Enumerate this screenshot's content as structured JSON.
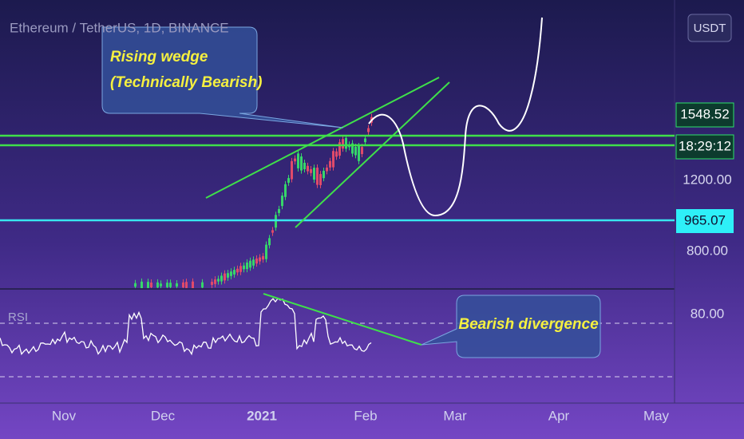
{
  "header": {
    "title": "Ethereum / TetherUS, 1D, BINANCE",
    "currency_button": "USDT"
  },
  "annotations": {
    "wedge_line1": "Rising wedge",
    "wedge_line2": "(Technically Bearish)",
    "divergence": "Bearish divergence"
  },
  "price_scale": {
    "last_price": "1548.52",
    "countdown": "18:29:12",
    "level1": "1200.00",
    "support": "965.07",
    "level2": "800.00"
  },
  "rsi": {
    "label": "RSI",
    "level": "80.00"
  },
  "time_axis": [
    "Nov",
    "Dec",
    "2021",
    "Feb",
    "Mar",
    "Apr",
    "May"
  ]
}
